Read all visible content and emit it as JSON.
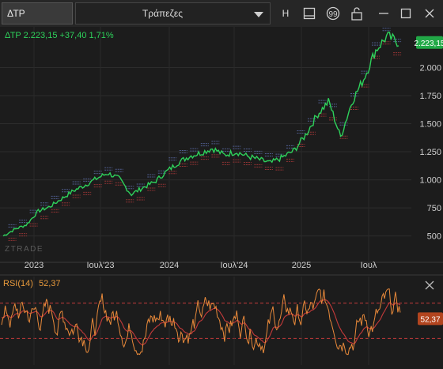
{
  "header": {
    "symbol": "ΔΤΡ",
    "group": "Τράπεζες",
    "buttons": [
      "H",
      "panel-icon",
      "quote-icon",
      "lock-icon",
      "minimize-icon",
      "maximize-icon",
      "close-icon"
    ],
    "h_label": "H"
  },
  "quote": {
    "text": "ΔΤΡ 2.223,15 +37,40 1,71%",
    "last_label": "2.223,15"
  },
  "rsi": {
    "label": "RSI(14)",
    "value": "52,37",
    "value_tag": "52,37"
  },
  "watermark": "ZTRADE",
  "colors": {
    "price": "#2ed15b",
    "rsi": "#e8893a",
    "rsi_ma": "#c43a3a",
    "band_up": "#5e6fae",
    "band_dn": "#b33a3a"
  },
  "chart_data": {
    "type": "line",
    "price_axis_ticks": [
      "2.000",
      "1.750",
      "1.500",
      "1.250",
      "1.000",
      "750",
      "500"
    ],
    "price_axis_values": [
      2000,
      1750,
      1500,
      1250,
      1000,
      750,
      500
    ],
    "ylim": [
      420,
      2320
    ],
    "x_ticks": [
      "2023",
      "Ιουλ'23",
      "2024",
      "Ιουλ'24",
      "2025",
      "Ιουλ"
    ],
    "series": [
      {
        "x": [
          "2022-11",
          "2022-12",
          "2023-01",
          "2023-02",
          "2023-03",
          "2023-04",
          "2023-05",
          "2023-06",
          "2023-07",
          "2023-08",
          "2023-09",
          "2023-10",
          "2023-11",
          "2023-12",
          "2024-01",
          "2024-02",
          "2024-03",
          "2024-04",
          "2024-05",
          "2024-06",
          "2024-07",
          "2024-08",
          "2024-09",
          "2024-10",
          "2024-11",
          "2024-12",
          "2025-01",
          "2025-02",
          "2025-03",
          "2025-04",
          "2025-05",
          "2025-06",
          "2025-07",
          "2025-08",
          "2025-09"
        ],
        "values": [
          500,
          560,
          600,
          720,
          760,
          830,
          900,
          950,
          1010,
          1060,
          1010,
          870,
          930,
          980,
          1070,
          1150,
          1210,
          1240,
          1280,
          1220,
          1250,
          1210,
          1180,
          1150,
          1200,
          1260,
          1400,
          1580,
          1700,
          1380,
          1700,
          1900,
          2150,
          2280,
          2223
        ]
      }
    ],
    "rsi_series": {
      "name": "RSI(14)",
      "upper": 70,
      "lower": 30,
      "last": 52.37
    }
  }
}
